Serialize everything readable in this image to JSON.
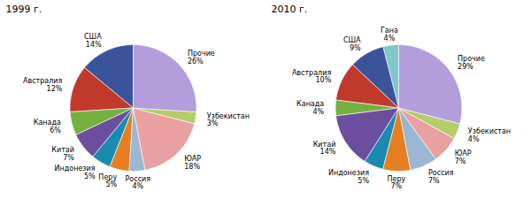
{
  "chart_data": [
    {
      "type": "pie",
      "title": "1999 г.",
      "categories": [
        "США",
        "Австралия",
        "Канада",
        "Китай",
        "Индонезия",
        "Перу",
        "Россия",
        "ЮАР",
        "Узбекистан",
        "Прочие"
      ],
      "values": [
        14,
        12,
        6,
        7,
        5,
        5,
        4,
        18,
        3,
        26
      ],
      "value_labels": [
        "14%",
        "12%",
        "6%",
        "7%",
        "5%",
        "5%",
        "4%",
        "18%",
        "3%",
        "26%"
      ],
      "colors": [
        "#3a539b",
        "#c0392b",
        "#76b041",
        "#6b4f9e",
        "#1a8bb0",
        "#e67e22",
        "#9ab7d3",
        "#e8a0a0",
        "#b5cc6a",
        "#b39ddb"
      ],
      "data_labels": true
    },
    {
      "type": "pie",
      "title": "2010 г.",
      "categories": [
        "Гана",
        "США",
        "Австралия",
        "Канада",
        "Китай",
        "Индонезия",
        "Перу",
        "Россия",
        "ЮАР",
        "Узбекистан",
        "Прочие"
      ],
      "values": [
        4,
        9,
        10,
        4,
        14,
        5,
        7,
        7,
        7,
        4,
        29
      ],
      "value_labels": [
        "4%",
        "9%",
        "10%",
        "4%",
        "14%",
        "5%",
        "7%",
        "7%",
        "7%",
        "4%",
        "29%"
      ],
      "colors": [
        "#7ec8c8",
        "#3a539b",
        "#c0392b",
        "#76b041",
        "#6b4f9e",
        "#1a8bb0",
        "#e67e22",
        "#9ab7d3",
        "#e8a0a0",
        "#b5cc6a",
        "#b39ddb"
      ],
      "data_labels": true
    }
  ]
}
